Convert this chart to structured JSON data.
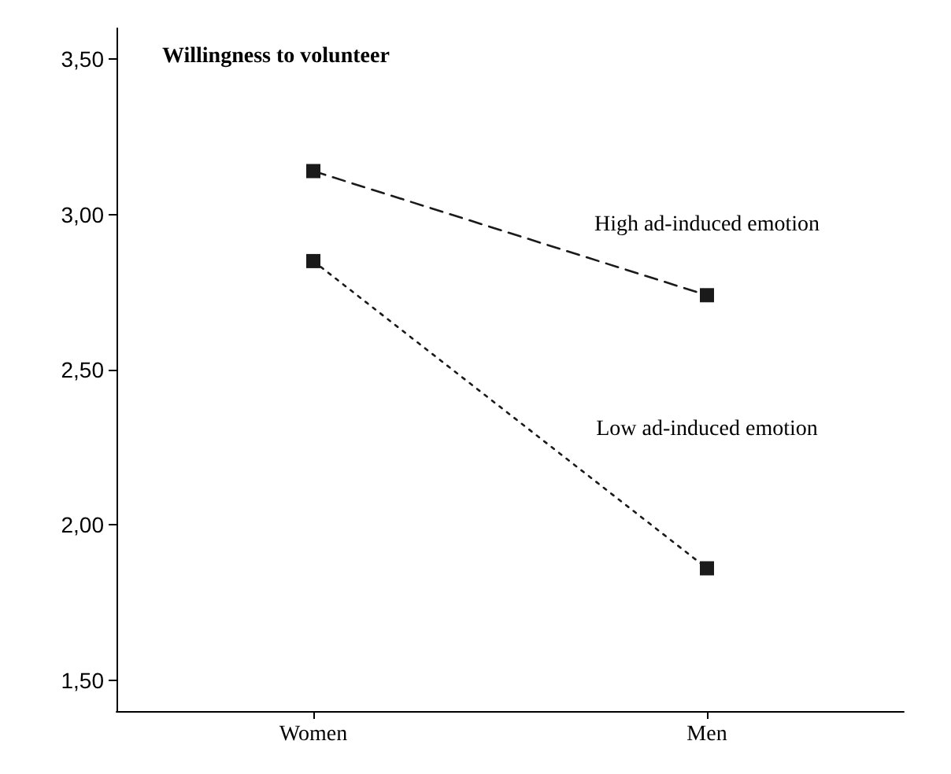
{
  "chart_data": {
    "type": "line",
    "title": "Willingness to volunteer",
    "categories": [
      "Women",
      "Men"
    ],
    "series": [
      {
        "name": "High ad-induced emotion",
        "color": "#1a1a1a",
        "values": [
          3.14,
          2.74
        ],
        "line_style": "dashed"
      },
      {
        "name": "Low ad-induced emotion",
        "color": "#1a1a1a",
        "values": [
          2.85,
          1.86
        ],
        "line_style": "dotted"
      }
    ],
    "ylim": [
      1.4,
      3.6
    ],
    "yticks": [
      {
        "value": 1.5,
        "label": "1,50"
      },
      {
        "value": 2,
        "label": "2,00"
      },
      {
        "value": 2.5,
        "label": "2,50"
      },
      {
        "value": 3,
        "label": "3,00"
      },
      {
        "value": 3.5,
        "label": "3,50"
      }
    ],
    "grid": false,
    "legend": false,
    "marker": "square"
  }
}
